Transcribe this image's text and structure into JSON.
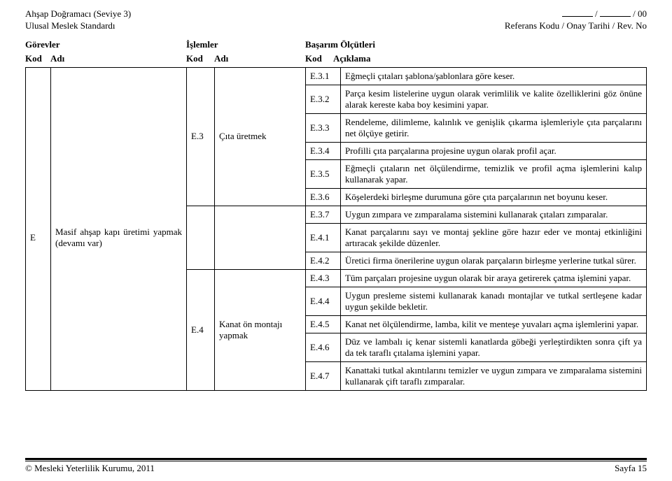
{
  "header": {
    "left_line1": "Ahşap Doğramacı (Seviye 3)",
    "left_line2": "Ulusal Meslek Standardı",
    "right_line1_sep": " / ",
    "right_line1_suffix": " / 00",
    "right_line2": "Referans Kodu / Onay Tarihi / Rev. No"
  },
  "sections": {
    "gorevler": "Görevler",
    "islemler": "İşlemler",
    "basarim": "Başarım Ölçütleri"
  },
  "colheads": {
    "kod": "Kod",
    "adi": "Adı",
    "aciklama": "Açıklama"
  },
  "group": {
    "kod": "E",
    "adi": "Masif ahşap kapı üretimi yapmak (devamı var)"
  },
  "op_e3": {
    "kod": "E.3",
    "adi": "Çıta üretmek"
  },
  "op_e4": {
    "kod": "E.4",
    "adi": "Kanat ön montajı yapmak"
  },
  "rows": {
    "e31": {
      "kod": "E.3.1",
      "desc": "Eğmeçli çıtaları şablona/şablonlara göre keser."
    },
    "e32": {
      "kod": "E.3.2",
      "desc": "Parça kesim listelerine uygun olarak verimlilik ve kalite özelliklerini göz önüne alarak kereste kaba boy kesimini yapar."
    },
    "e33": {
      "kod": "E.3.3",
      "desc": "Rendeleme, dilimleme, kalınlık ve genişlik çıkarma işlemleriyle çıta parçalarını net ölçüye getirir."
    },
    "e34": {
      "kod": "E.3.4",
      "desc": "Profilli çıta parçalarına projesine uygun olarak profil açar."
    },
    "e35": {
      "kod": "E.3.5",
      "desc": "Eğmeçli çıtaların net ölçülendirme, temizlik ve profil açma işlemlerini kalıp kullanarak yapar."
    },
    "e36": {
      "kod": "E.3.6",
      "desc": "Köşelerdeki birleşme durumuna göre çıta parçalarının net boyunu keser."
    },
    "e37": {
      "kod": "E.3.7",
      "desc": "Uygun zımpara ve zımparalama sistemini kullanarak çıtaları zımparalar."
    },
    "e41": {
      "kod": "E.4.1",
      "desc": "Kanat parçalarını sayı ve montaj şekline göre hazır eder ve montaj etkinliğini artıracak şekilde düzenler."
    },
    "e42": {
      "kod": "E.4.2",
      "desc": "Üretici firma önerilerine uygun olarak parçaların birleşme yerlerine tutkal sürer."
    },
    "e43": {
      "kod": "E.4.3",
      "desc": "Tüm parçaları projesine uygun olarak bir araya getirerek çatma işlemini yapar."
    },
    "e44": {
      "kod": "E.4.4",
      "desc": "Uygun presleme sistemi kullanarak kanadı montajlar ve tutkal sertleşene kadar uygun şekilde bekletir."
    },
    "e45": {
      "kod": "E.4.5",
      "desc": "Kanat net ölçülendirme, lamba, kilit ve menteşe yuvaları açma işlemlerini yapar."
    },
    "e46": {
      "kod": "E.4.6",
      "desc": "Düz ve lambalı iç kenar sistemli kanatlarda göbeği yerleştirdikten sonra çift ya da tek taraflı çıtalama işlemini yapar."
    },
    "e47": {
      "kod": "E.4.7",
      "desc": "Kanattaki tutkal akıntılarını temizler ve uygun zımpara ve zımparalama sistemini kullanarak çift taraflı zımparalar."
    }
  },
  "footer": {
    "left": "© Mesleki Yeterlilik Kurumu, 2011",
    "right": "Sayfa 15"
  }
}
